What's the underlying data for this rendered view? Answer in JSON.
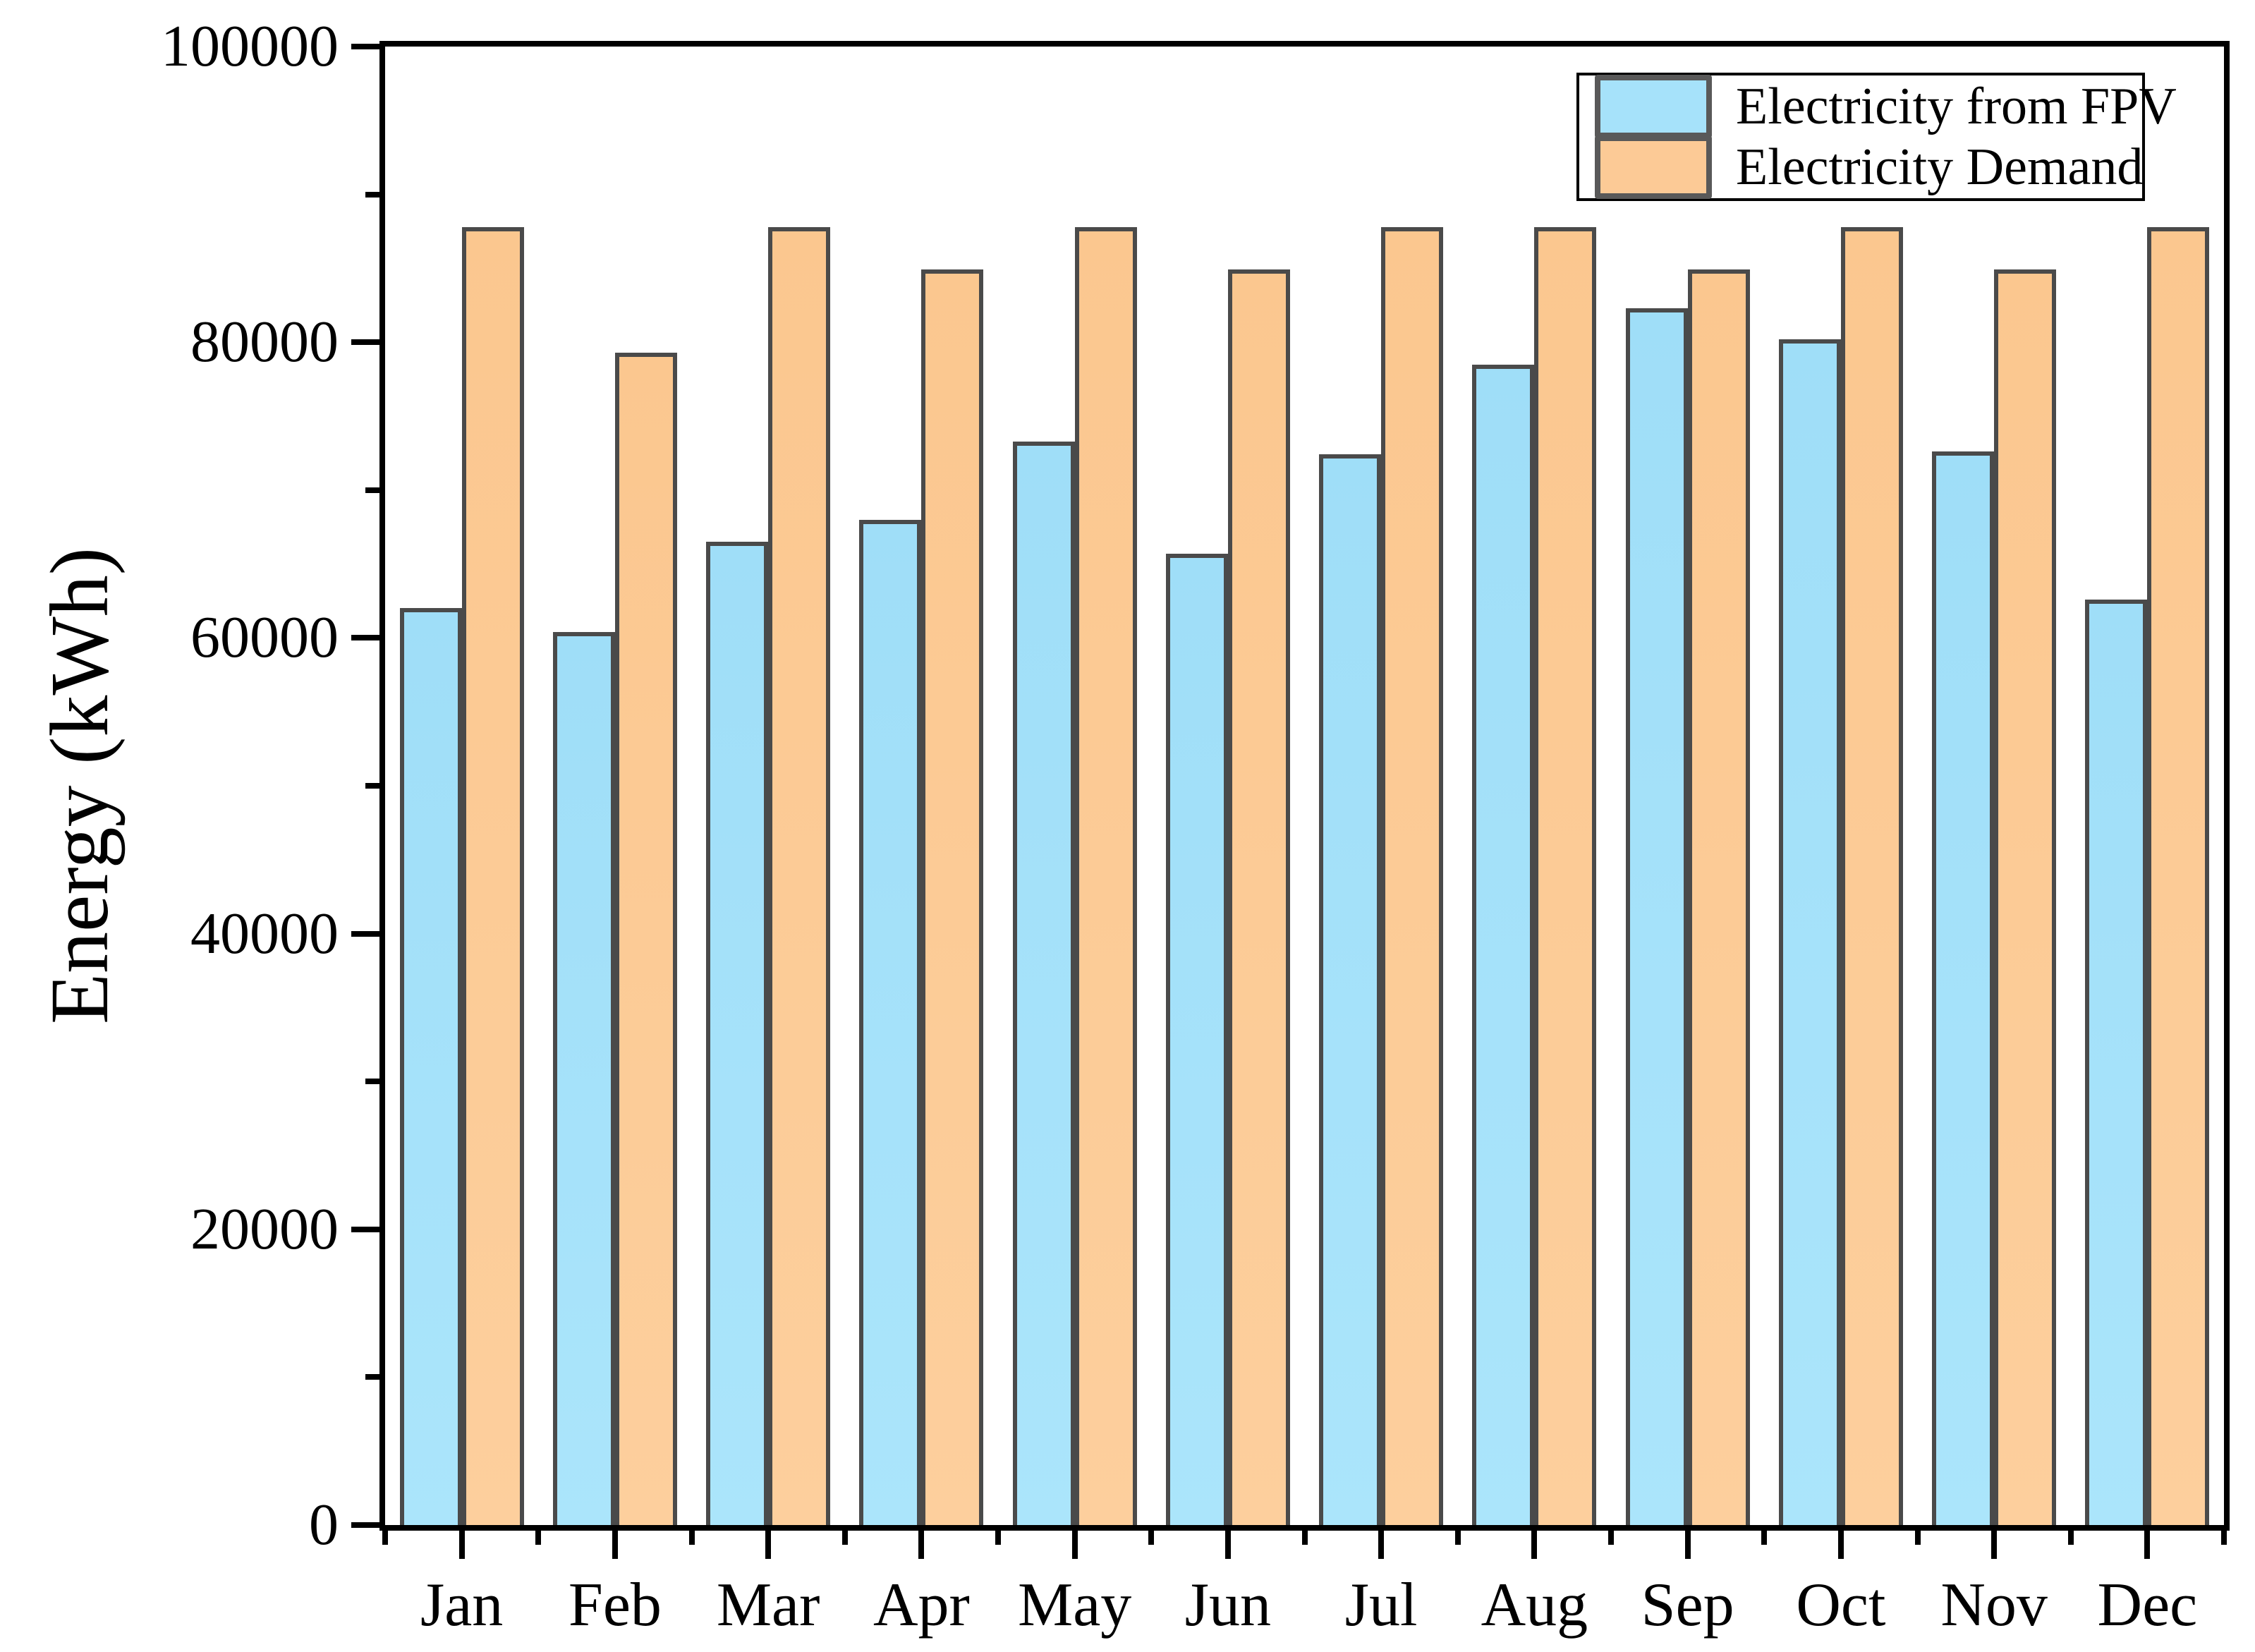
{
  "chart_data": {
    "type": "bar",
    "title": "",
    "xlabel": "",
    "ylabel": "Energy (kWh)",
    "ylim": [
      0,
      100000
    ],
    "grid": false,
    "legend_position": "top-right",
    "categories": [
      "Jan",
      "Feb",
      "Mar",
      "Apr",
      "May",
      "Jun",
      "Jul",
      "Aug",
      "Sep",
      "Oct",
      "Nov",
      "Dec"
    ],
    "y_major_tick_values": [
      0,
      20000,
      40000,
      60000,
      80000,
      100000
    ],
    "y_tick_labels": [
      "0",
      "20000",
      "40000",
      "60000",
      "80000",
      "100000"
    ],
    "y_minor_tick_step": 10000,
    "series": [
      {
        "name": "Electricity from FPV",
        "color": "#a6e2fa",
        "values": [
          62000,
          60400,
          66500,
          68000,
          73300,
          65700,
          72400,
          78500,
          82300,
          80200,
          72600,
          62600
        ]
      },
      {
        "name": "Electricity Demand",
        "color": "#fcca96",
        "values": [
          87800,
          79300,
          87800,
          84900,
          87800,
          84900,
          87800,
          87800,
          84900,
          87800,
          84900,
          87800
        ]
      }
    ]
  },
  "axes": {
    "y_title": "Energy (kWh)"
  },
  "legend": {
    "items": [
      {
        "label": "Electricity from FPV",
        "color": "#a6e2fa"
      },
      {
        "label": "Electricity Demand",
        "color": "#fcca96"
      }
    ]
  },
  "colors": {
    "fpv_fill": "#a6e2fa",
    "demand_fill": "#fcca96",
    "bar_edge": "#4a4a4a",
    "axis": "#000000",
    "background": "#ffffff"
  }
}
